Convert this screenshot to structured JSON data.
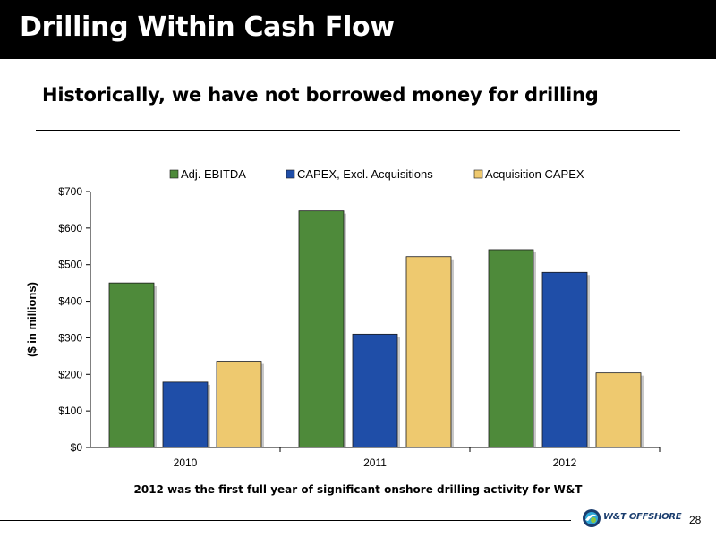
{
  "header": {
    "title": "Drilling Within Cash Flow"
  },
  "subtitle": "Historically, we have not borrowed money for drilling",
  "footnote": "2012 was the first full year of significant onshore drilling activity for W&T",
  "logo": {
    "text": "W&T OFFSHORE"
  },
  "page_number": "28",
  "chart_data": {
    "type": "bar",
    "categories": [
      "2010",
      "2011",
      "2012"
    ],
    "series": [
      {
        "name": "Adj. EBITDA",
        "values": [
          450,
          647,
          541
        ],
        "color": "#4e8a3a"
      },
      {
        "name": "CAPEX, Excl. Acquisitions",
        "values": [
          179,
          310,
          479
        ],
        "color": "#1f4ea8"
      },
      {
        "name": "Acquisition CAPEX",
        "values": [
          236,
          522,
          204
        ],
        "color": "#eec96f"
      }
    ],
    "ylabel": "($ in millions)",
    "ylim": [
      0,
      700
    ],
    "yticks": [
      0,
      100,
      200,
      300,
      400,
      500,
      600,
      700
    ],
    "ytick_labels": [
      "$0",
      "$100",
      "$200",
      "$300",
      "$400",
      "$500",
      "$600",
      "$700"
    ],
    "grid": false,
    "legend_position": "top"
  }
}
